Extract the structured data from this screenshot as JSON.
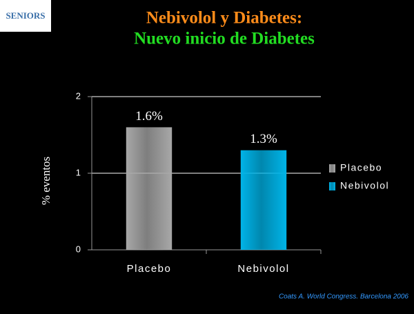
{
  "logo": "SENIORS",
  "chart_data": {
    "type": "bar",
    "title": "Nebivolol y Diabetes:",
    "subtitle": "Nuevo inicio de Diabetes",
    "y_label": "% eventos",
    "categories": [
      "Placebo",
      "Nebivolol"
    ],
    "values": [
      1.6,
      1.3
    ],
    "value_labels": [
      "1.6%",
      "1.3%"
    ],
    "colors": [
      "#a8a8a8",
      "#00b4e8"
    ],
    "ylim": [
      0,
      2
    ],
    "yticks": [
      0,
      1,
      2
    ],
    "grid": true,
    "legend": "right",
    "source": "Coats A. World Congress. Barcelona 2006"
  }
}
